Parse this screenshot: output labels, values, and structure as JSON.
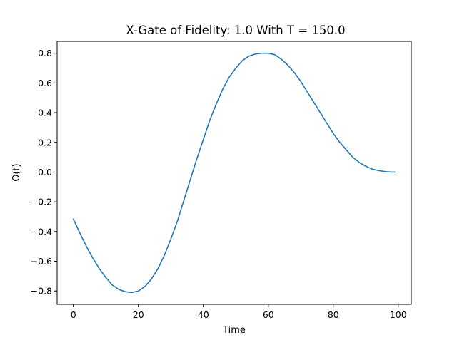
{
  "chart_data": {
    "type": "line",
    "title": "X-Gate of Fidelity: 1.0 With T = 150.0",
    "xlabel": "Time",
    "ylabel": "Ω(t)",
    "xlim": [
      -5,
      104
    ],
    "ylim": [
      -0.89,
      0.88
    ],
    "xticks": [
      0,
      20,
      40,
      60,
      80,
      100
    ],
    "xtick_labels": [
      "0",
      "20",
      "40",
      "60",
      "80",
      "100"
    ],
    "yticks": [
      -0.8,
      -0.6,
      -0.4,
      -0.2,
      0.0,
      0.2,
      0.4,
      0.6,
      0.8
    ],
    "ytick_labels": [
      "−0.8",
      "−0.6",
      "−0.4",
      "−0.2",
      "0.0",
      "0.2",
      "0.4",
      "0.6",
      "0.8"
    ],
    "grid": false,
    "legend": "none",
    "series": [
      {
        "color": "#1f77b4",
        "x": [
          0,
          2,
          4,
          6,
          8,
          10,
          12,
          14,
          16,
          18,
          20,
          22,
          24,
          26,
          28,
          30,
          32,
          34,
          36,
          38,
          40,
          42,
          44,
          46,
          48,
          50,
          52,
          54,
          56,
          58,
          60,
          62,
          64,
          66,
          68,
          70,
          72,
          74,
          76,
          78,
          80,
          82,
          84,
          86,
          88,
          90,
          92,
          94,
          96,
          98,
          99
        ],
        "y": [
          -0.316,
          -0.41,
          -0.5,
          -0.58,
          -0.65,
          -0.71,
          -0.76,
          -0.79,
          -0.805,
          -0.81,
          -0.8,
          -0.77,
          -0.72,
          -0.65,
          -0.56,
          -0.45,
          -0.33,
          -0.19,
          -0.05,
          0.09,
          0.22,
          0.35,
          0.46,
          0.56,
          0.64,
          0.7,
          0.75,
          0.78,
          0.795,
          0.8,
          0.8,
          0.79,
          0.76,
          0.72,
          0.67,
          0.61,
          0.54,
          0.47,
          0.4,
          0.33,
          0.26,
          0.2,
          0.15,
          0.1,
          0.065,
          0.04,
          0.02,
          0.01,
          0.003,
          0.0,
          0.0
        ]
      }
    ]
  }
}
